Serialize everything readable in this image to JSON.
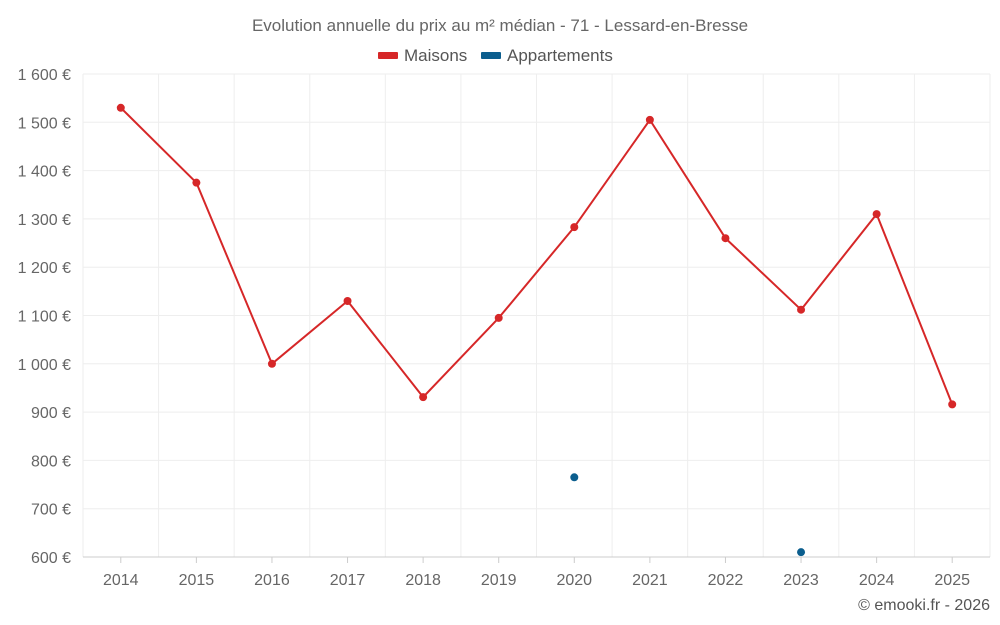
{
  "chart_data": {
    "type": "line",
    "title": "Evolution annuelle du prix au m² médian - 71 - Lessard-en-Bresse",
    "categories": [
      "2014",
      "2015",
      "2016",
      "2017",
      "2018",
      "2019",
      "2020",
      "2021",
      "2022",
      "2023",
      "2024",
      "2025"
    ],
    "y_ticks": [
      "600 €",
      "700 €",
      "800 €",
      "900 €",
      "1 000 €",
      "1 100 €",
      "1 200 €",
      "1 300 €",
      "1 400 €",
      "1 500 €",
      "1 600 €"
    ],
    "ylim": [
      600,
      1600
    ],
    "grid": true,
    "legend_position": "top-center",
    "series": [
      {
        "name": "Maisons",
        "color": "#d62728",
        "values": [
          1530,
          1375,
          1000,
          1130,
          931,
          1095,
          1283,
          1505,
          1260,
          1112,
          1310,
          916
        ]
      },
      {
        "name": "Appartements",
        "color": "#0b5e8e",
        "values": [
          null,
          null,
          null,
          null,
          null,
          null,
          765,
          null,
          null,
          610,
          null,
          null
        ]
      }
    ]
  },
  "credit": "© emooki.fr - 2026"
}
